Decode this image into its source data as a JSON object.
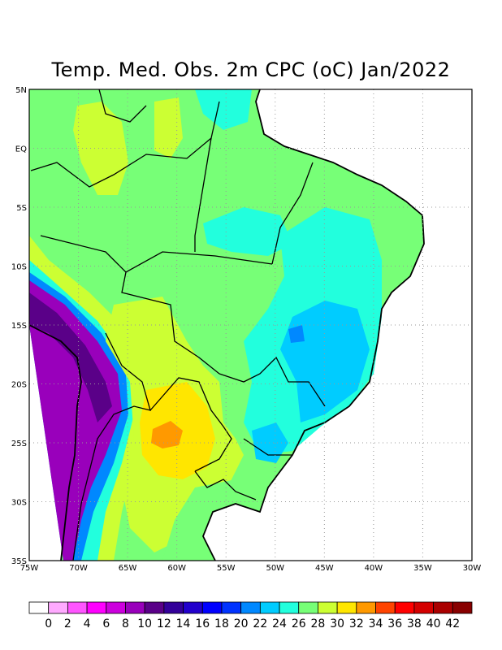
{
  "title": "Temp. Med. Obs. 2m CPC (oC) Jan/2022",
  "map": {
    "lon_range": [
      -75,
      -30
    ],
    "lat_range": [
      -35,
      5
    ],
    "x_ticks": [
      {
        "v": -75,
        "label": "75W"
      },
      {
        "v": -70,
        "label": "70W"
      },
      {
        "v": -65,
        "label": "65W"
      },
      {
        "v": -60,
        "label": "60W"
      },
      {
        "v": -55,
        "label": "55W"
      },
      {
        "v": -50,
        "label": "50W"
      },
      {
        "v": -45,
        "label": "45W"
      },
      {
        "v": -40,
        "label": "40W"
      },
      {
        "v": -35,
        "label": "35W"
      },
      {
        "v": -30,
        "label": "30W"
      }
    ],
    "y_ticks": [
      {
        "v": 5,
        "label": "5N"
      },
      {
        "v": 0,
        "label": "EQ"
      },
      {
        "v": -5,
        "label": "5S"
      },
      {
        "v": -10,
        "label": "10S"
      },
      {
        "v": -15,
        "label": "15S"
      },
      {
        "v": -20,
        "label": "20S"
      },
      {
        "v": -25,
        "label": "25S"
      },
      {
        "v": -30,
        "label": "30S"
      },
      {
        "v": -35,
        "label": "35S"
      }
    ]
  },
  "colorbar": {
    "labels": [
      "0",
      "2",
      "4",
      "6",
      "8",
      "10",
      "12",
      "14",
      "16",
      "18",
      "20",
      "22",
      "24",
      "26",
      "28",
      "30",
      "32",
      "34",
      "36",
      "38",
      "40",
      "42"
    ],
    "colors": [
      "#ffffff",
      "#ffaaff",
      "#ff55ff",
      "#ff00ff",
      "#cc00dd",
      "#9900bb",
      "#5a0088",
      "#330099",
      "#2200cc",
      "#0000ff",
      "#0033ff",
      "#0088ff",
      "#00ccff",
      "#22ffdd",
      "#77ff77",
      "#ccff33",
      "#ffe600",
      "#ff9900",
      "#ff4400",
      "#ff0000",
      "#d40000",
      "#aa0000",
      "#880000"
    ]
  }
}
